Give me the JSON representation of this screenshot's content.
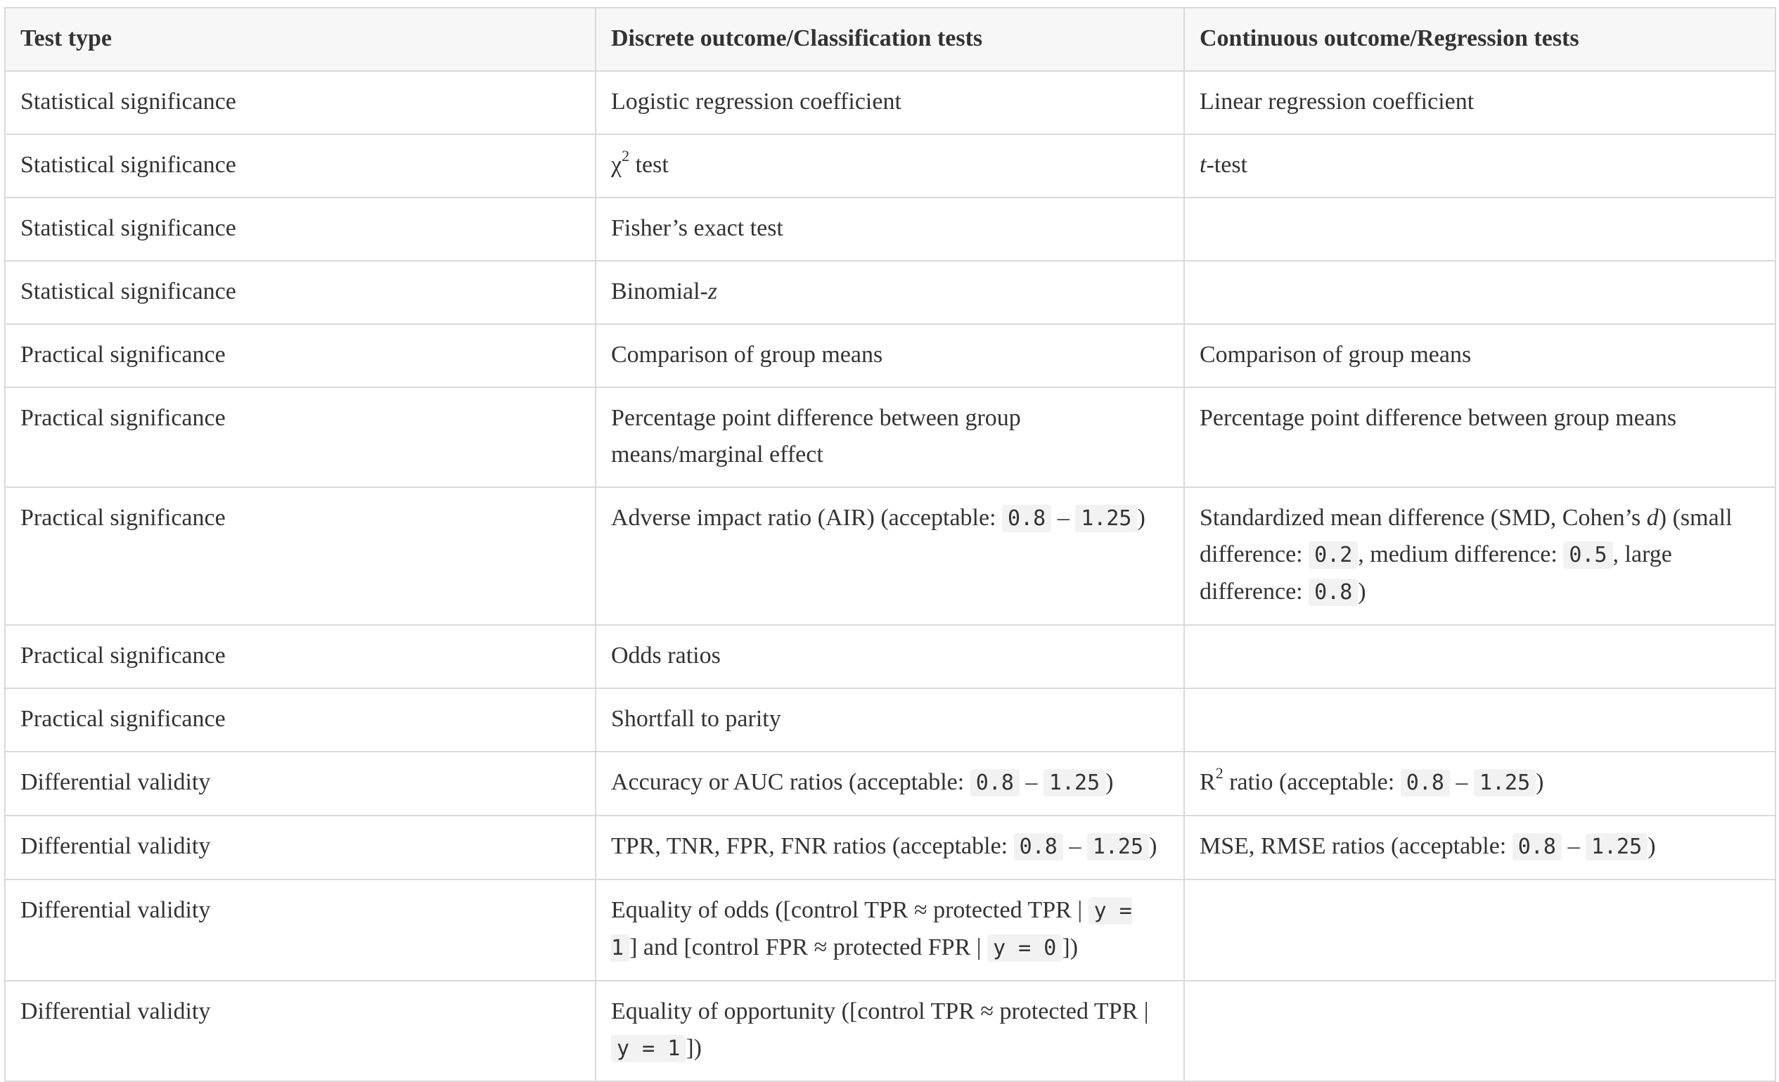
{
  "table": {
    "headers": [
      "Test type",
      "Discrete outcome/Classification tests",
      "Continuous outcome/Regression tests"
    ],
    "rows": [
      {
        "type": "Statistical significance",
        "discrete": {
          "pre": "Logistic regression coefficient"
        },
        "continuous": {
          "pre": "Linear regression coefficient"
        }
      },
      {
        "type": "Statistical significance",
        "discrete": {
          "symbol": "χ",
          "sup": "2",
          "post": " test"
        },
        "continuous": {
          "italic": "t",
          "post": "-test"
        }
      },
      {
        "type": "Statistical significance",
        "discrete": {
          "pre": "Fisher’s exact test"
        },
        "continuous": {
          "pre": ""
        }
      },
      {
        "type": "Statistical significance",
        "discrete": {
          "pre": "Binomial-",
          "italic": "z"
        },
        "continuous": {
          "pre": ""
        }
      },
      {
        "type": "Practical significance",
        "discrete": {
          "pre": "Comparison of group means"
        },
        "continuous": {
          "pre": "Comparison of group means"
        }
      },
      {
        "type": "Practical significance",
        "discrete": {
          "pre": "Percentage point difference between group means/marginal effect"
        },
        "continuous": {
          "pre": "Percentage point difference between group means"
        }
      },
      {
        "type": "Practical significance",
        "discrete": {
          "pre": "Adverse impact ratio (AIR) (acceptable: ",
          "code1": "0.8",
          "mid": " – ",
          "code2": "1.25",
          "post": ")"
        },
        "continuous": {
          "pre": "Standardized mean difference (SMD, Cohen’s ",
          "italic": "d",
          "post1": ") (small difference: ",
          "code1": "0.2",
          "post2": ", medium difference: ",
          "code2": "0.5",
          "post3": ", large difference: ",
          "code3": "0.8",
          "post4": ")"
        }
      },
      {
        "type": "Practical significance",
        "discrete": {
          "pre": "Odds ratios"
        },
        "continuous": {
          "pre": ""
        }
      },
      {
        "type": "Practical significance",
        "discrete": {
          "pre": "Shortfall to parity"
        },
        "continuous": {
          "pre": ""
        }
      },
      {
        "type": "Differential validity",
        "discrete": {
          "pre": "Accuracy or AUC ratios (acceptable: ",
          "code1": "0.8",
          "mid": " – ",
          "code2": "1.25",
          "post": ")"
        },
        "continuous": {
          "symbol": "R",
          "sup": "2",
          "pre2": " ratio (acceptable: ",
          "code1": "0.8",
          "mid": " – ",
          "code2": "1.25",
          "post": ")"
        }
      },
      {
        "type": "Differential validity",
        "discrete": {
          "pre": "TPR, TNR, FPR, FNR ratios (acceptable: ",
          "code1": "0.8",
          "mid": " – ",
          "code2": "1.25",
          "post": ")"
        },
        "continuous": {
          "pre": "MSE, RMSE ratios (acceptable: ",
          "code1": "0.8",
          "mid": " – ",
          "code2": "1.25",
          "post": ")"
        }
      },
      {
        "type": "Differential validity",
        "discrete": {
          "pre": "Equality of odds ([control TPR ≈ protected TPR | ",
          "code1": "y = 1",
          "mid": "] and [control FPR ≈ protected FPR | ",
          "code2": "y = 0",
          "post": "])"
        },
        "continuous": {
          "pre": ""
        }
      },
      {
        "type": "Differential validity",
        "discrete": {
          "pre": "Equality of opportunity ([control TPR ≈ protected TPR | ",
          "code1": "y = 1",
          "post": "])"
        },
        "continuous": {
          "pre": ""
        }
      }
    ]
  }
}
